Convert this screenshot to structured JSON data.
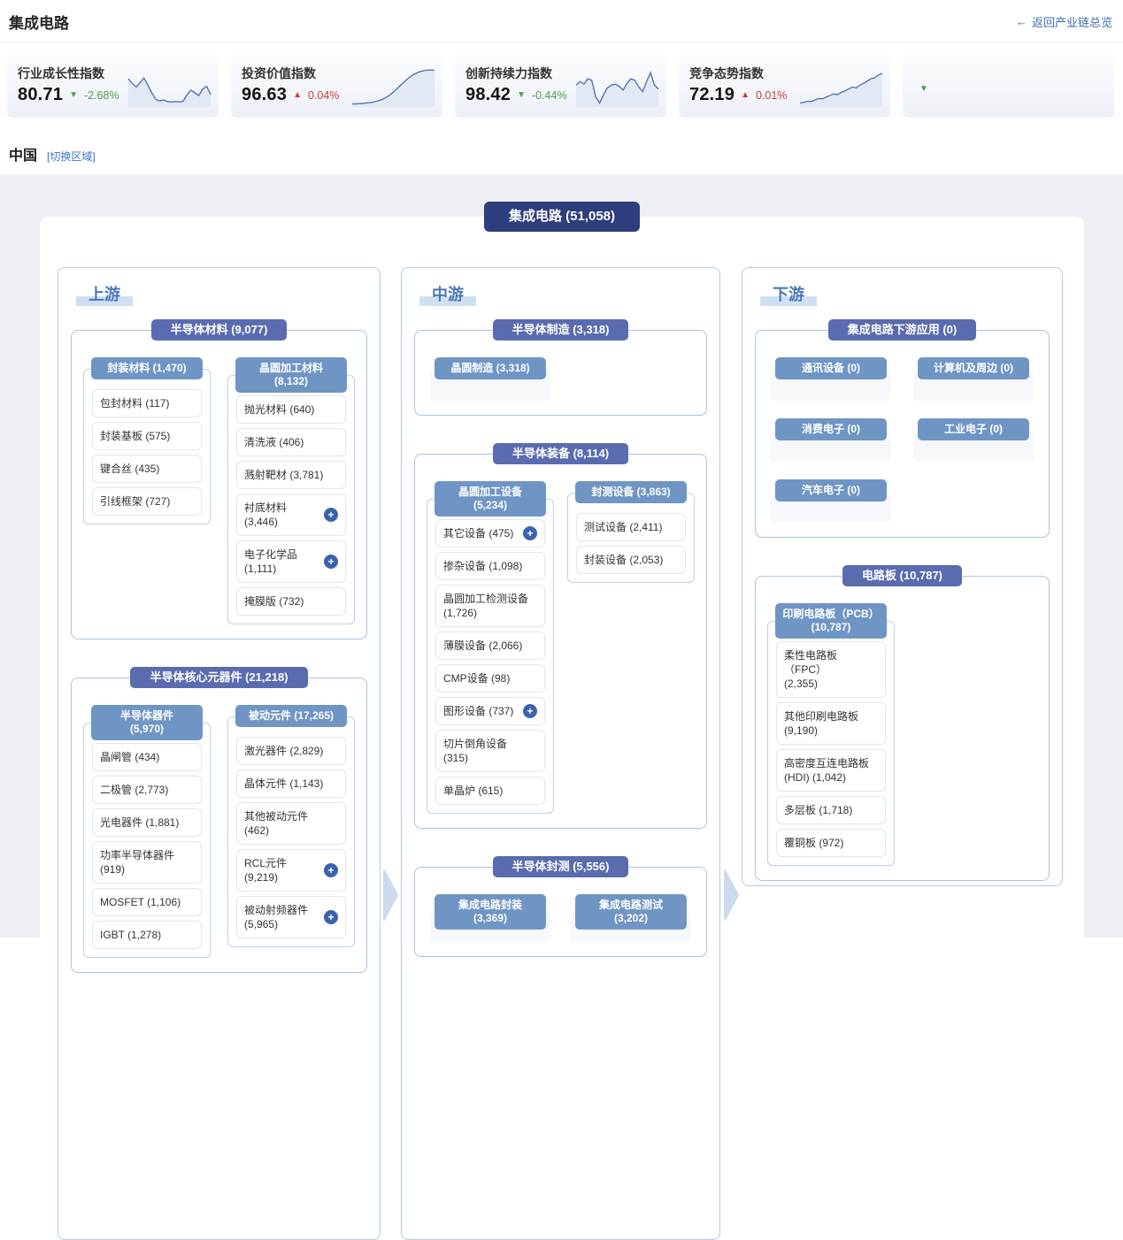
{
  "header": {
    "title": "集成电路",
    "back_label": "返回产业链总览",
    "back_icon": "arrow-left"
  },
  "cards": [
    {
      "label": "行业成长性指数",
      "value": "80.71",
      "change": "-2.68%",
      "direction": "down",
      "trend": [
        72,
        60,
        50,
        62,
        74,
        55,
        35,
        18,
        14,
        16,
        12,
        11,
        12,
        11,
        13,
        30,
        42,
        35,
        28,
        45,
        52,
        30
      ]
    },
    {
      "label": "投资价值指数",
      "value": "96.63",
      "change": "0.04%",
      "direction": "up",
      "trend": [
        6,
        6,
        7,
        8,
        9,
        11,
        14,
        18,
        24,
        32,
        42,
        53,
        64,
        74,
        82,
        88,
        92,
        94,
        95,
        94
      ]
    },
    {
      "label": "创新持续力指数",
      "value": "98.42",
      "change": "-0.44%",
      "direction": "down",
      "trend": [
        55,
        65,
        58,
        72,
        68,
        25,
        8,
        30,
        48,
        55,
        58,
        52,
        42,
        60,
        72,
        68,
        50,
        38,
        65,
        88,
        55,
        45
      ]
    },
    {
      "label": "竞争态势指数",
      "value": "72.19",
      "change": "0.01%",
      "direction": "up",
      "trend": [
        8,
        10,
        13,
        12,
        16,
        20,
        19,
        24,
        28,
        32,
        30,
        36,
        40,
        45,
        50,
        48,
        55,
        60,
        66,
        72,
        75,
        82,
        86
      ]
    },
    {
      "label": "",
      "value": "",
      "change": "",
      "direction": "down",
      "trend": []
    }
  ],
  "region": {
    "name": "中国",
    "switch_label": "[切换区域]"
  },
  "chain": {
    "root": "集成电路 (51,058)",
    "columns": [
      {
        "label": "上游",
        "sections": [
          {
            "title": "半导体材料 (9,077)",
            "groups": [
              {
                "title": "封装材料 (1,470)",
                "items": [
                  {
                    "label": "包封材料 (117)"
                  },
                  {
                    "label": "封装基板 (575)"
                  },
                  {
                    "label": "键合丝 (435)"
                  },
                  {
                    "label": "引线框架 (727)"
                  }
                ]
              },
              {
                "title": "晶圆加工材料\n(8,132)",
                "tall": true,
                "items": [
                  {
                    "label": "抛光材料 (640)"
                  },
                  {
                    "label": "清洗液 (406)"
                  },
                  {
                    "label": "溅射靶材 (3,781)"
                  },
                  {
                    "label": "衬底材料 (3,446)",
                    "plus": true
                  },
                  {
                    "label": "电子化学品\n(1,111)",
                    "plus": true
                  },
                  {
                    "label": "掩膜版 (732)"
                  }
                ]
              }
            ]
          },
          {
            "title": "半导体核心元器件 (21,218)",
            "groups": [
              {
                "title": "半导体器件\n(5,970)",
                "tall": true,
                "items": [
                  {
                    "label": "晶闸管 (434)"
                  },
                  {
                    "label": "二极管 (2,773)"
                  },
                  {
                    "label": "光电器件 (1,881)"
                  },
                  {
                    "label": "功率半导体器件\n(919)"
                  },
                  {
                    "label": "MOSFET (1,106)"
                  },
                  {
                    "label": "IGBT (1,278)"
                  }
                ]
              },
              {
                "title": "被动元件 (17,265)",
                "items": [
                  {
                    "label": "激光器件 (2,829)"
                  },
                  {
                    "label": "晶体元件 (1,143)"
                  },
                  {
                    "label": "其他被动元件\n(462)"
                  },
                  {
                    "label": "RCL元件 (9,219)",
                    "plus": true
                  },
                  {
                    "label": "被动射频器件\n(5,965)",
                    "plus": true
                  }
                ]
              }
            ]
          }
        ]
      },
      {
        "label": "中游",
        "sections": [
          {
            "title": "半导体制造 (3,318)",
            "groups": [
              {
                "title": "晶圆制造 (3,318)",
                "empty": true
              }
            ]
          },
          {
            "title": "半导体装备 (8,114)",
            "groups": [
              {
                "title": "晶圆加工设备\n(5,234)",
                "tall": true,
                "items": [
                  {
                    "label": "其它设备 (475)",
                    "plus": true
                  },
                  {
                    "label": "掺杂设备 (1,098)"
                  },
                  {
                    "label": "晶圆加工检测设备\n(1,726)"
                  },
                  {
                    "label": "薄膜设备 (2,066)"
                  },
                  {
                    "label": "CMP设备 (98)"
                  },
                  {
                    "label": "图形设备 (737)",
                    "plus": true
                  },
                  {
                    "label": "切片倒角设备\n(315)"
                  },
                  {
                    "label": "单晶炉 (615)"
                  }
                ]
              },
              {
                "title": "封测设备 (3,863)",
                "items": [
                  {
                    "label": "测试设备 (2,411)"
                  },
                  {
                    "label": "封装设备 (2,053)"
                  }
                ]
              }
            ]
          },
          {
            "title": "半导体封测 (5,556)",
            "groups": [
              {
                "title": "集成电路封装\n(3,369)",
                "tall": true,
                "empty": true
              },
              {
                "title": "集成电路测试\n(3,202)",
                "tall": true,
                "empty": true
              }
            ]
          }
        ]
      },
      {
        "label": "下游",
        "sections": [
          {
            "title": "集成电路下游应用 (0)",
            "groups": [
              {
                "title": "通讯设备 (0)",
                "empty": true
              },
              {
                "title": "计算机及周边 (0)",
                "empty": true
              },
              {
                "title": "消费电子 (0)",
                "empty": true
              },
              {
                "title": "工业电子 (0)",
                "empty": true
              },
              {
                "title": "汽车电子 (0)",
                "empty": true
              }
            ]
          },
          {
            "title": "电路板 (10,787)",
            "groups": [
              {
                "title": "印刷电路板（PCB）\n(10,787)",
                "tall": true,
                "items": [
                  {
                    "label": "柔性电路板（FPC）\n(2,355)"
                  },
                  {
                    "label": "其他印刷电路板\n(9,190)"
                  },
                  {
                    "label": "高密度互连电路板\n(HDI)  (1,042)"
                  },
                  {
                    "label": "多层板 (1,718)"
                  },
                  {
                    "label": "覆铜板 (972)"
                  }
                ]
              }
            ]
          }
        ]
      }
    ]
  },
  "icons": {
    "back": "arrow-left-icon",
    "down": "triangle-down-icon",
    "up": "triangle-up-icon",
    "expand": "plus-circle-icon",
    "flow": "chevron-right-icon"
  },
  "colors": {
    "accent_navy": "#2e3d7d",
    "accent_indigo": "#5a6bb0",
    "accent_steel": "#6f95c5",
    "link_blue": "#3e6cb0",
    "switch_link_blue": "#3d6fd6",
    "up_red": "#cf3a31",
    "down_green": "#4ca04c",
    "sparkline_blue": "#5577b5",
    "stage_bg": "#edeff4",
    "column_border": "#b6cbe5"
  }
}
